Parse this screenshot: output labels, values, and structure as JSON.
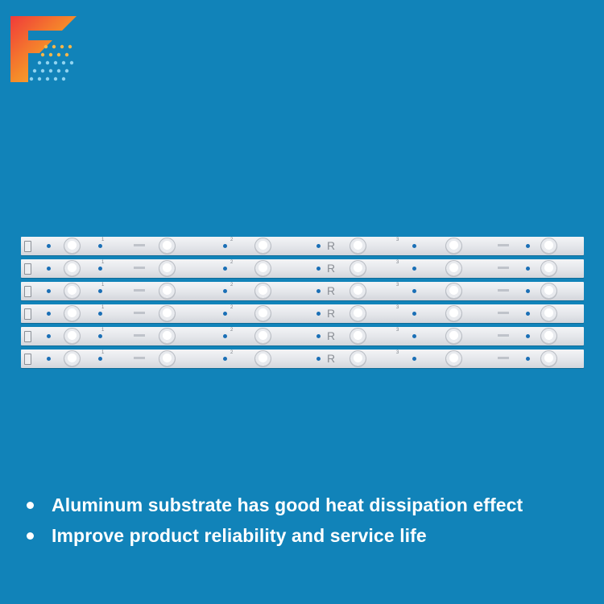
{
  "brand": {
    "logo": "F-brand-logo-icon"
  },
  "colors": {
    "background": "#1183b9",
    "strip": "#e6e8ec",
    "text": "#ffffff"
  },
  "product": {
    "strip_count": 6,
    "strip_letter": "R",
    "strip_numbers": [
      "1",
      "2",
      "3"
    ]
  },
  "features": [
    "Aluminum substrate has good heat dissipation effect",
    "Improve product reliability and service life"
  ]
}
